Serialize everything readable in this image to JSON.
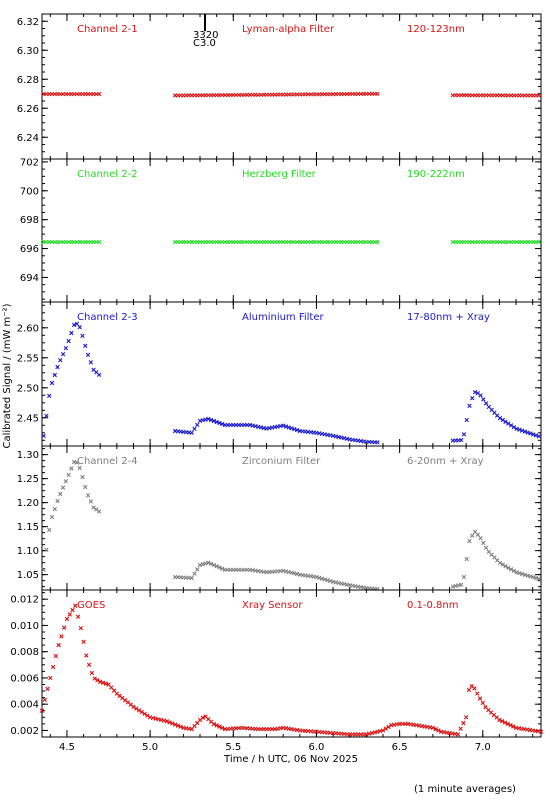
{
  "chart_data": {
    "type": "scatter",
    "xlabel": "Time / h UTC, 06 Nov 2025",
    "ylabel": "Calibrated Signal / (mW m⁻²)",
    "footnote": "(1 minute averages)",
    "xlim": [
      4.35,
      7.35
    ],
    "x_ticks": [
      "4.5",
      "5.0",
      "5.5",
      "6.0",
      "6.5",
      "7.0"
    ],
    "x_tick_values": [
      4.5,
      5.0,
      5.5,
      6.0,
      6.5,
      7.0
    ],
    "flare_marker": {
      "x": 5.33,
      "labels": [
        "3320",
        "C3.0"
      ]
    },
    "panels": [
      {
        "id": "p1",
        "color": "#dd1111",
        "labels": [
          "Channel 2-1",
          "Lyman-alpha Filter",
          "120-123nm"
        ],
        "ylim": [
          6.225,
          6.325
        ],
        "y_ticks": [
          "6.24",
          "6.26",
          "6.28",
          "6.30",
          "6.32"
        ],
        "y_tick_values": [
          6.24,
          6.26,
          6.28,
          6.3,
          6.32
        ],
        "segments": [
          {
            "x": [
              4.36,
              4.7
            ],
            "y": [
              6.2698,
              6.2698
            ]
          },
          {
            "x": [
              5.15,
              6.37
            ],
            "y": [
              6.2688,
              6.27
            ]
          },
          {
            "x": [
              6.82,
              7.35
            ],
            "y": [
              6.269,
              6.2688
            ]
          }
        ]
      },
      {
        "id": "p2",
        "color": "#22dd22",
        "labels": [
          "Channel 2-2",
          "Herzberg Filter",
          "190-222nm"
        ],
        "ylim": [
          692.3,
          702.2
        ],
        "y_ticks": [
          "694",
          "696",
          "698",
          "700",
          "702"
        ],
        "y_tick_values": [
          694,
          696,
          698,
          700,
          702
        ],
        "segments": [
          {
            "x": [
              4.36,
              4.7
            ],
            "y": [
              696.45,
              696.45
            ]
          },
          {
            "x": [
              5.15,
              6.37
            ],
            "y": [
              696.45,
              696.45
            ]
          },
          {
            "x": [
              6.82,
              7.35
            ],
            "y": [
              696.45,
              696.45
            ]
          }
        ]
      },
      {
        "id": "p3",
        "color": "#1a1ad0",
        "labels": [
          "Channel 2-3",
          "Aluminium Filter",
          "17-80nm + Xray"
        ],
        "ylim": [
          2.403,
          2.643
        ],
        "y_ticks": [
          "2.45",
          "2.50",
          "2.55",
          "2.60"
        ],
        "y_tick_values": [
          2.45,
          2.5,
          2.55,
          2.6
        ],
        "segments": [
          {
            "x": [
              4.36,
              4.4,
              4.45,
              4.5,
              4.55,
              4.58,
              4.62,
              4.66,
              4.7
            ],
            "y": [
              2.42,
              2.5,
              2.54,
              2.57,
              2.61,
              2.6,
              2.56,
              2.53,
              2.52
            ]
          },
          {
            "x": [
              5.15,
              5.25,
              5.3,
              5.35,
              5.45,
              5.6,
              5.7,
              5.8,
              5.9,
              6.0,
              6.1,
              6.2,
              6.3,
              6.37
            ],
            "y": [
              2.428,
              2.425,
              2.445,
              2.448,
              2.438,
              2.438,
              2.432,
              2.437,
              2.428,
              2.425,
              2.42,
              2.414,
              2.41,
              2.409
            ]
          },
          {
            "x": [
              6.82,
              6.88,
              6.92,
              6.95,
              6.98,
              7.03,
              7.1,
              7.2,
              7.35
            ],
            "y": [
              2.412,
              2.413,
              2.47,
              2.493,
              2.49,
              2.47,
              2.45,
              2.432,
              2.418
            ]
          }
        ]
      },
      {
        "id": "p4",
        "color": "#808080",
        "labels": [
          "Channel 2-4",
          "Zirconium Filter",
          "6-20nm + Xray"
        ],
        "ylim": [
          1.018,
          1.318
        ],
        "y_ticks": [
          "1.05",
          "1.10",
          "1.15",
          "1.20",
          "1.25",
          "1.30"
        ],
        "y_tick_values": [
          1.05,
          1.1,
          1.15,
          1.2,
          1.25,
          1.3
        ],
        "segments": [
          {
            "x": [
              4.36,
              4.4,
              4.45,
              4.5,
              4.55,
              4.58,
              4.62,
              4.66,
              4.7
            ],
            "y": [
              1.06,
              1.16,
              1.21,
              1.25,
              1.29,
              1.27,
              1.22,
              1.19,
              1.18
            ]
          },
          {
            "x": [
              5.15,
              5.25,
              5.3,
              5.35,
              5.45,
              5.6,
              5.7,
              5.8,
              5.9,
              6.0,
              6.1,
              6.2,
              6.3,
              6.37
            ],
            "y": [
              1.045,
              1.043,
              1.07,
              1.075,
              1.06,
              1.06,
              1.055,
              1.058,
              1.05,
              1.045,
              1.035,
              1.028,
              1.022,
              1.02
            ]
          },
          {
            "x": [
              6.82,
              6.88,
              6.92,
              6.95,
              6.98,
              7.03,
              7.1,
              7.2,
              7.35
            ],
            "y": [
              1.025,
              1.03,
              1.12,
              1.14,
              1.13,
              1.1,
              1.075,
              1.055,
              1.04
            ]
          }
        ]
      },
      {
        "id": "p5",
        "color": "#dd1111",
        "labels": [
          "GOES",
          "Xray Sensor",
          "0.1-0.8nm"
        ],
        "ylim": [
          0.0015,
          0.0127
        ],
        "y_ticks": [
          "0.002",
          "0.004",
          "0.006",
          "0.008",
          "0.010",
          "0.012"
        ],
        "y_tick_values": [
          0.002,
          0.004,
          0.006,
          0.008,
          0.01,
          0.012
        ],
        "segments": [
          {
            "x": [
              4.35,
              4.4,
              4.45,
              4.5,
              4.55,
              4.58,
              4.62,
              4.66,
              4.7,
              4.75,
              4.8,
              4.9,
              5.0,
              5.1,
              5.2,
              5.25,
              5.3,
              5.33,
              5.38,
              5.45,
              5.55,
              5.65,
              5.75,
              5.8,
              5.9,
              6.0,
              6.1,
              6.2,
              6.3,
              6.4,
              6.45,
              6.5,
              6.55,
              6.6,
              6.65,
              6.7,
              6.75,
              6.8,
              6.85,
              6.9,
              6.92,
              6.95,
              6.98,
              7.02,
              7.1,
              7.2,
              7.35
            ],
            "y": [
              0.0035,
              0.006,
              0.0085,
              0.0105,
              0.0115,
              0.01,
              0.0075,
              0.006,
              0.0057,
              0.0055,
              0.0048,
              0.0038,
              0.003,
              0.0027,
              0.0022,
              0.0021,
              0.0028,
              0.0031,
              0.0025,
              0.0021,
              0.0022,
              0.0021,
              0.0021,
              0.0022,
              0.002,
              0.0019,
              0.0018,
              0.0017,
              0.0017,
              0.002,
              0.0024,
              0.0025,
              0.0025,
              0.0024,
              0.0023,
              0.0022,
              0.0019,
              0.0018,
              0.0017,
              0.003,
              0.0055,
              0.0052,
              0.0045,
              0.0037,
              0.0028,
              0.0022,
              0.0019
            ]
          }
        ]
      }
    ]
  }
}
